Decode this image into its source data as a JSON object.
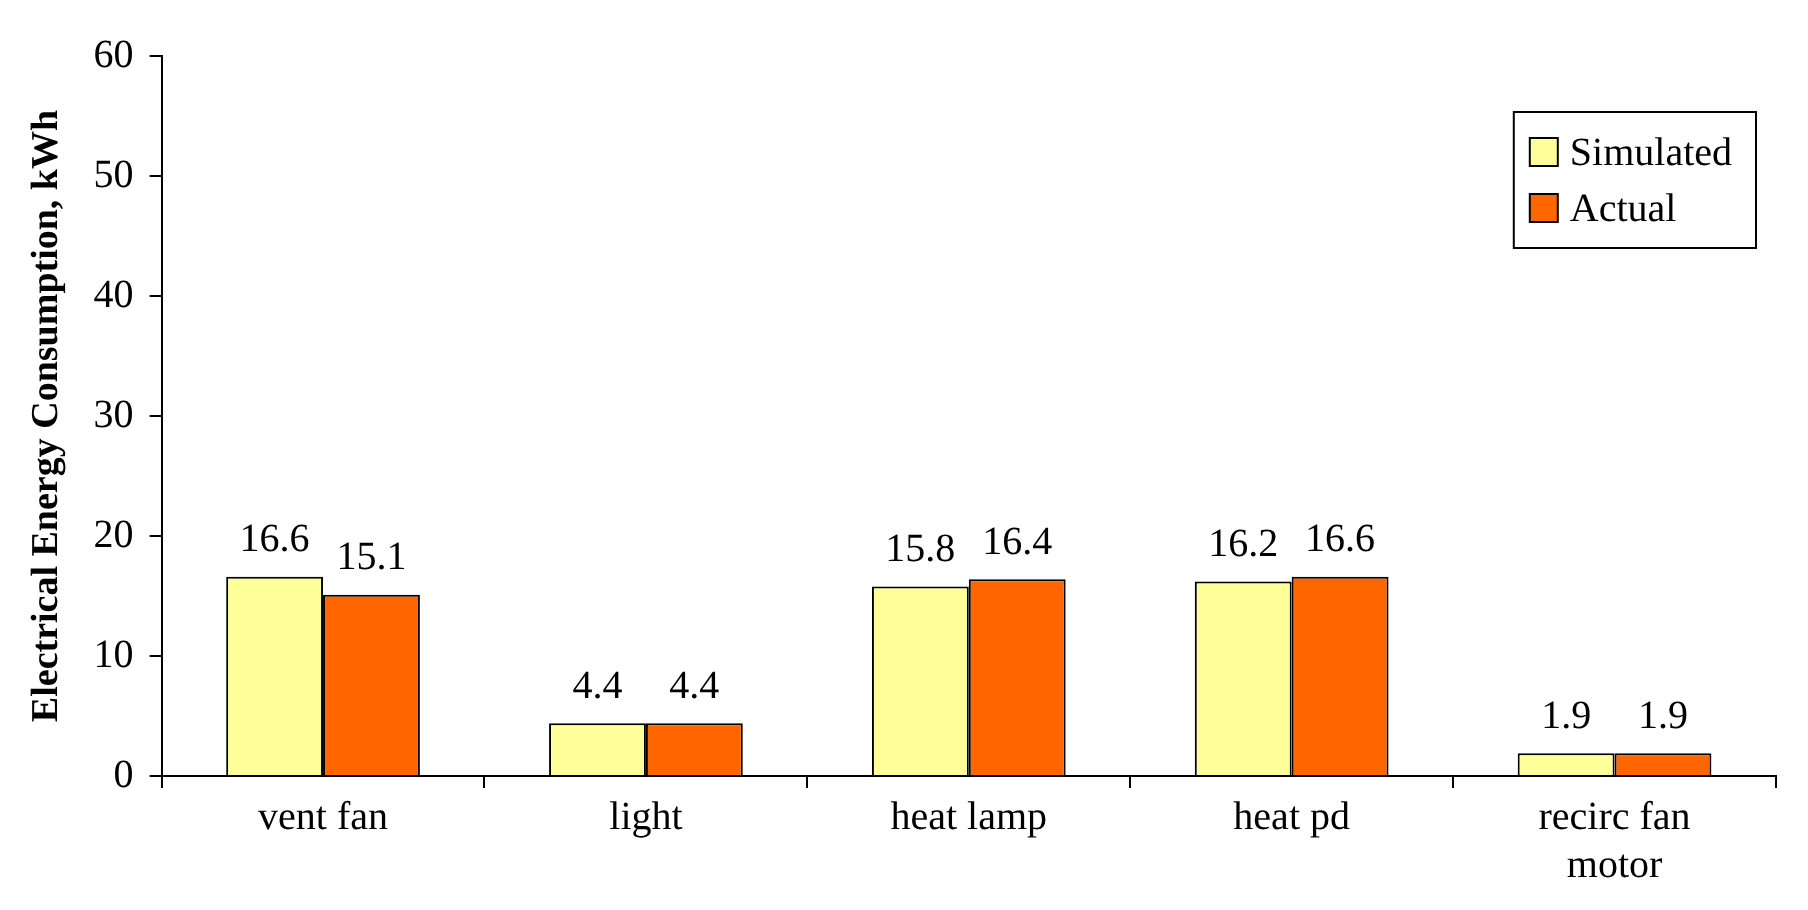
{
  "chart_data": {
    "type": "bar",
    "ylabel": "Electrical Energy Consumption, kWh",
    "categories": [
      "vent fan",
      "light",
      "heat lamp",
      "heat pd",
      "recirc fan motor"
    ],
    "series": [
      {
        "name": "Simulated",
        "color": "#ffff99",
        "values": [
          16.6,
          4.4,
          15.8,
          16.2,
          1.9
        ]
      },
      {
        "name": "Actual",
        "color": "#ff6600",
        "values": [
          15.1,
          4.4,
          16.4,
          16.6,
          1.9
        ]
      }
    ],
    "ylim": [
      0,
      60
    ],
    "yticks": [
      0,
      10,
      20,
      30,
      40,
      50,
      60
    ],
    "grid": false,
    "legend": "top right",
    "data_labels": true
  }
}
